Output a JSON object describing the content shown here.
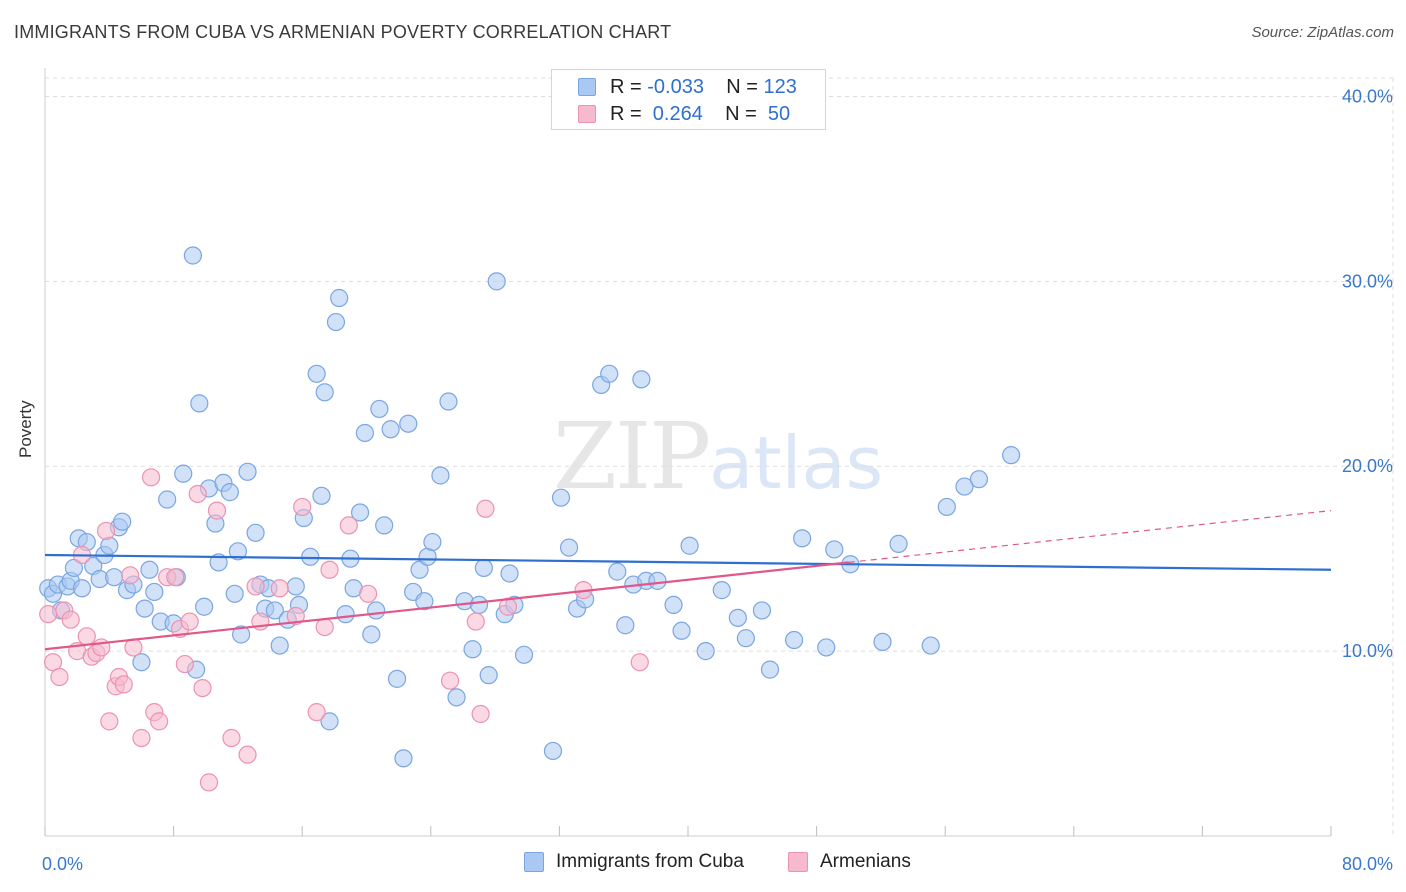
{
  "header": {
    "title": "IMMIGRANTS FROM CUBA VS ARMENIAN POVERTY CORRELATION CHART",
    "source": "Source: ZipAtlas.com"
  },
  "watermark": {
    "zip": "ZIP",
    "atlas": "atlas"
  },
  "legend": {
    "rows": [
      {
        "r_label": "R = ",
        "r_value": "-0.033",
        "n_label": "N = ",
        "n_value": "123"
      },
      {
        "r_label": "R = ",
        "r_value": " 0.264",
        "n_label": "N = ",
        "n_value": " 50"
      }
    ]
  },
  "colors": {
    "blue_fill": "#a9c8f2",
    "blue_stroke": "#7aa6e2",
    "blue_line": "#2f6fd0",
    "pink_fill": "#f7b9cd",
    "pink_stroke": "#eb93b0",
    "pink_line": "#e0588a",
    "axis_text": "#3a78c9",
    "grid": "#dddddd"
  },
  "chart_data": {
    "type": "scatter",
    "ylabel": "Poverty",
    "x_ticks": [
      "0.0%",
      "80.0%"
    ],
    "y_ticks": [
      {
        "value": 10,
        "label": "10.0%"
      },
      {
        "value": 20,
        "label": "20.0%"
      },
      {
        "value": 30,
        "label": "30.0%"
      },
      {
        "value": 40,
        "label": "40.0%"
      }
    ],
    "xlim": [
      0,
      80
    ],
    "ylim": [
      0,
      41
    ],
    "series": [
      {
        "name": "Immigrants from Cuba",
        "trend": {
          "x": [
            0,
            80
          ],
          "y": [
            15.2,
            14.4
          ],
          "dashed_to": null
        },
        "points": [
          [
            0.2,
            13.4
          ],
          [
            0.5,
            13.1
          ],
          [
            0.8,
            13.6
          ],
          [
            1.0,
            12.2
          ],
          [
            1.4,
            13.5
          ],
          [
            1.6,
            13.8
          ],
          [
            1.8,
            14.5
          ],
          [
            2.1,
            16.1
          ],
          [
            2.3,
            13.4
          ],
          [
            2.6,
            15.9
          ],
          [
            3.0,
            14.6
          ],
          [
            3.4,
            13.9
          ],
          [
            3.7,
            15.2
          ],
          [
            4.0,
            15.7
          ],
          [
            4.3,
            14.0
          ],
          [
            4.6,
            16.7
          ],
          [
            4.8,
            17.0
          ],
          [
            5.1,
            13.3
          ],
          [
            5.5,
            13.6
          ],
          [
            6.0,
            9.4
          ],
          [
            6.2,
            12.3
          ],
          [
            6.5,
            14.4
          ],
          [
            6.8,
            13.2
          ],
          [
            7.2,
            11.6
          ],
          [
            7.6,
            18.2
          ],
          [
            8.0,
            11.5
          ],
          [
            8.2,
            14.0
          ],
          [
            8.6,
            19.6
          ],
          [
            9.2,
            31.4
          ],
          [
            9.4,
            9.0
          ],
          [
            9.6,
            23.4
          ],
          [
            9.9,
            12.4
          ],
          [
            10.2,
            18.8
          ],
          [
            10.6,
            16.9
          ],
          [
            10.8,
            14.8
          ],
          [
            11.1,
            19.1
          ],
          [
            11.5,
            18.6
          ],
          [
            11.8,
            13.1
          ],
          [
            12.0,
            15.4
          ],
          [
            12.2,
            10.9
          ],
          [
            12.6,
            19.7
          ],
          [
            13.1,
            16.4
          ],
          [
            13.4,
            13.6
          ],
          [
            13.7,
            12.3
          ],
          [
            13.9,
            13.4
          ],
          [
            14.3,
            12.2
          ],
          [
            14.6,
            10.3
          ],
          [
            15.1,
            11.7
          ],
          [
            15.6,
            13.5
          ],
          [
            15.8,
            12.5
          ],
          [
            16.1,
            17.2
          ],
          [
            16.5,
            15.1
          ],
          [
            16.9,
            25.0
          ],
          [
            17.2,
            18.4
          ],
          [
            17.4,
            24.0
          ],
          [
            17.7,
            6.2
          ],
          [
            18.1,
            27.8
          ],
          [
            18.3,
            29.1
          ],
          [
            18.7,
            12.0
          ],
          [
            19.0,
            15.0
          ],
          [
            19.2,
            13.4
          ],
          [
            19.6,
            17.5
          ],
          [
            19.9,
            21.8
          ],
          [
            20.3,
            10.9
          ],
          [
            20.6,
            12.2
          ],
          [
            20.8,
            23.1
          ],
          [
            21.1,
            16.8
          ],
          [
            21.5,
            22.0
          ],
          [
            21.9,
            8.5
          ],
          [
            22.3,
            4.2
          ],
          [
            22.6,
            22.3
          ],
          [
            22.9,
            13.2
          ],
          [
            23.3,
            14.4
          ],
          [
            23.6,
            12.7
          ],
          [
            23.8,
            15.1
          ],
          [
            24.1,
            15.9
          ],
          [
            24.6,
            19.5
          ],
          [
            25.1,
            23.5
          ],
          [
            25.6,
            7.5
          ],
          [
            26.1,
            12.7
          ],
          [
            26.6,
            10.1
          ],
          [
            27.0,
            12.5
          ],
          [
            27.3,
            14.5
          ],
          [
            27.6,
            8.7
          ],
          [
            28.1,
            30.0
          ],
          [
            28.6,
            12.0
          ],
          [
            28.9,
            14.2
          ],
          [
            29.2,
            12.5
          ],
          [
            29.8,
            9.8
          ],
          [
            31.6,
            4.6
          ],
          [
            32.1,
            18.3
          ],
          [
            32.6,
            15.6
          ],
          [
            33.1,
            12.3
          ],
          [
            33.6,
            12.8
          ],
          [
            34.6,
            24.4
          ],
          [
            35.1,
            25.0
          ],
          [
            35.6,
            14.3
          ],
          [
            36.1,
            11.4
          ],
          [
            36.6,
            13.6
          ],
          [
            37.1,
            24.7
          ],
          [
            37.4,
            13.8
          ],
          [
            38.1,
            13.8
          ],
          [
            39.1,
            12.5
          ],
          [
            39.6,
            11.1
          ],
          [
            40.1,
            15.7
          ],
          [
            41.1,
            10.0
          ],
          [
            42.1,
            13.3
          ],
          [
            43.1,
            11.8
          ],
          [
            43.6,
            10.7
          ],
          [
            44.6,
            12.2
          ],
          [
            45.1,
            9.0
          ],
          [
            46.6,
            10.6
          ],
          [
            47.1,
            16.1
          ],
          [
            48.6,
            10.2
          ],
          [
            49.1,
            15.5
          ],
          [
            50.1,
            14.7
          ],
          [
            52.1,
            10.5
          ],
          [
            53.1,
            15.8
          ],
          [
            55.1,
            10.3
          ],
          [
            56.1,
            17.8
          ],
          [
            57.2,
            18.9
          ],
          [
            58.1,
            19.3
          ],
          [
            60.1,
            20.6
          ]
        ]
      },
      {
        "name": "Armenians",
        "trend": {
          "x": [
            0,
            50
          ],
          "y": [
            10.1,
            14.8
          ],
          "dashed_to": [
            80,
            17.6
          ]
        },
        "points": [
          [
            0.2,
            12.0
          ],
          [
            0.5,
            9.4
          ],
          [
            0.9,
            8.6
          ],
          [
            1.2,
            12.2
          ],
          [
            1.6,
            11.7
          ],
          [
            2.0,
            10.0
          ],
          [
            2.3,
            15.2
          ],
          [
            2.6,
            10.8
          ],
          [
            2.9,
            9.7
          ],
          [
            3.2,
            9.9
          ],
          [
            3.5,
            10.2
          ],
          [
            3.8,
            16.5
          ],
          [
            4.0,
            6.2
          ],
          [
            4.4,
            8.1
          ],
          [
            4.6,
            8.6
          ],
          [
            4.9,
            8.2
          ],
          [
            5.3,
            14.1
          ],
          [
            5.5,
            10.2
          ],
          [
            6.0,
            5.3
          ],
          [
            6.6,
            19.4
          ],
          [
            6.8,
            6.7
          ],
          [
            7.1,
            6.2
          ],
          [
            7.6,
            14.0
          ],
          [
            8.1,
            14.0
          ],
          [
            8.4,
            11.2
          ],
          [
            8.7,
            9.3
          ],
          [
            9.0,
            11.6
          ],
          [
            9.5,
            18.5
          ],
          [
            9.8,
            8.0
          ],
          [
            10.2,
            2.9
          ],
          [
            10.7,
            17.6
          ],
          [
            11.6,
            5.3
          ],
          [
            12.6,
            4.4
          ],
          [
            13.1,
            13.5
          ],
          [
            13.4,
            11.6
          ],
          [
            14.6,
            13.4
          ],
          [
            15.6,
            11.9
          ],
          [
            16.0,
            17.8
          ],
          [
            16.9,
            6.7
          ],
          [
            17.4,
            11.3
          ],
          [
            17.7,
            14.4
          ],
          [
            18.9,
            16.8
          ],
          [
            20.1,
            13.1
          ],
          [
            25.2,
            8.4
          ],
          [
            26.8,
            11.6
          ],
          [
            27.1,
            6.6
          ],
          [
            27.4,
            17.7
          ],
          [
            28.8,
            12.4
          ],
          [
            33.5,
            13.3
          ],
          [
            37.0,
            9.4
          ]
        ]
      }
    ]
  },
  "bottom_legend": [
    {
      "label": "Immigrants from Cuba"
    },
    {
      "label": "Armenians"
    }
  ]
}
